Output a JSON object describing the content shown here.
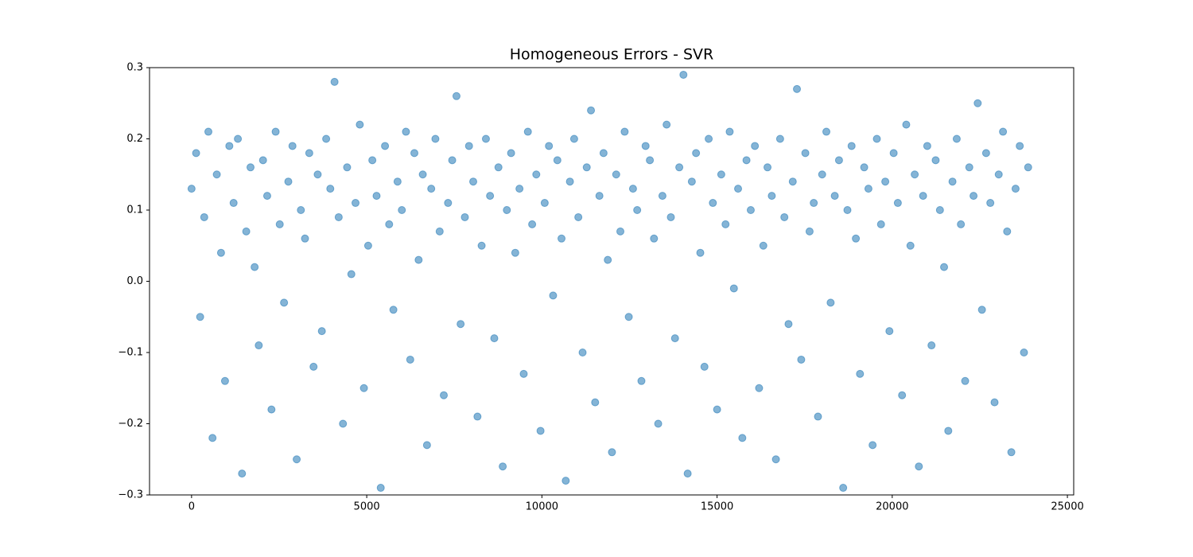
{
  "chart_data": {
    "type": "scatter",
    "title": "Homogeneous Errors - SVR",
    "color": "#1f77b4",
    "alpha": 0.55,
    "x": [
      0,
      130,
      245,
      362,
      480,
      598,
      720,
      841,
      955,
      1078,
      1200,
      1322,
      1440,
      1561,
      1683,
      1800,
      1918,
      2040,
      2159,
      2281,
      2400,
      2517,
      2640,
      2762,
      2880,
      3001,
      3120,
      3238,
      3360,
      3482,
      3600,
      3719,
      3842,
      3960,
      4081,
      4200,
      4322,
      4440,
      4561,
      4680,
      4802,
      4920,
      5041,
      5160,
      5281,
      5400,
      5522,
      5640,
      5761,
      5880,
      6002,
      6120,
      6242,
      6360,
      6481,
      6600,
      6720,
      6841,
      6960,
      7082,
      7200,
      7321,
      7440,
      7562,
      7680,
      7801,
      7920,
      8040,
      8161,
      8280,
      8402,
      8520,
      8641,
      8760,
      8882,
      9000,
      9121,
      9240,
      9360,
      9481,
      9600,
      9722,
      9840,
      9961,
      10080,
      10201,
      10320,
      10442,
      10560,
      10681,
      10800,
      10921,
      11040,
      11162,
      11280,
      11401,
      11520,
      11642,
      11760,
      11881,
      12000,
      12121,
      12240,
      12362,
      12480,
      12601,
      12720,
      12841,
      12960,
      13082,
      13200,
      13320,
      13441,
      13560,
      13681,
      13800,
      13922,
      14040,
      14161,
      14280,
      14400,
      14522,
      14640,
      14761,
      14880,
      15001,
      15120,
      15242,
      15360,
      15481,
      15600,
      15721,
      15840,
      15962,
      16080,
      16200,
      16321,
      16440,
      16562,
      16680,
      16800,
      16921,
      17040,
      17161,
      17280,
      17402,
      17520,
      17641,
      17760,
      17881,
      18000,
      18120,
      18242,
      18360,
      18481,
      18600,
      18721,
      18840,
      18962,
      19080,
      19200,
      19321,
      19440,
      19561,
      19680,
      19802,
      19920,
      20041,
      20160,
      20281,
      20400,
      20520,
      20642,
      20760,
      20881,
      21000,
      21121,
      21240,
      21362,
      21480,
      21600,
      21720,
      21841,
      21960,
      22082,
      22200,
      22321,
      22440,
      22561,
      22680,
      22800,
      22921,
      23040,
      23162,
      23280,
      23400,
      23521,
      23640,
      23761,
      23880
    ],
    "values": [
      0.13,
      0.18,
      -0.05,
      0.09,
      0.21,
      -0.22,
      0.15,
      0.04,
      -0.14,
      0.19,
      0.11,
      0.2,
      -0.27,
      0.07,
      0.16,
      0.02,
      -0.09,
      0.17,
      0.12,
      -0.18,
      0.21,
      0.08,
      -0.03,
      0.14,
      0.19,
      -0.25,
      0.1,
      0.06,
      0.18,
      -0.12,
      0.15,
      -0.07,
      0.2,
      0.13,
      0.28,
      0.09,
      -0.2,
      0.16,
      0.01,
      0.11,
      0.22,
      -0.15,
      0.05,
      0.17,
      0.12,
      -0.29,
      0.19,
      0.08,
      -0.04,
      0.14,
      0.1,
      0.21,
      -0.11,
      0.18,
      0.03,
      0.15,
      -0.23,
      0.13,
      0.2,
      0.07,
      -0.16,
      0.11,
      0.17,
      0.26,
      -0.06,
      0.09,
      0.19,
      0.14,
      -0.19,
      0.05,
      0.2,
      0.12,
      -0.08,
      0.16,
      -0.26,
      0.1,
      0.18,
      0.04,
      0.13,
      -0.13,
      0.21,
      0.08,
      0.15,
      -0.21,
      0.11,
      0.19,
      -0.02,
      0.17,
      0.06,
      -0.28,
      0.14,
      0.2,
      0.09,
      -0.1,
      0.16,
      0.24,
      -0.17,
      0.12,
      0.18,
      0.03,
      -0.24,
      0.15,
      0.07,
      0.21,
      -0.05,
      0.13,
      0.1,
      -0.14,
      0.19,
      0.17,
      0.06,
      -0.2,
      0.12,
      0.22,
      0.09,
      -0.08,
      0.16,
      0.29,
      -0.27,
      0.14,
      0.18,
      0.04,
      -0.12,
      0.2,
      0.11,
      -0.18,
      0.15,
      0.08,
      0.21,
      -0.01,
      0.13,
      -0.22,
      0.17,
      0.1,
      0.19,
      -0.15,
      0.05,
      0.16,
      0.12,
      -0.25,
      0.2,
      0.09,
      -0.06,
      0.14,
      0.27,
      -0.11,
      0.18,
      0.07,
      0.11,
      -0.19,
      0.15,
      0.21,
      -0.03,
      0.12,
      0.17,
      -0.29,
      0.1,
      0.19,
      0.06,
      -0.13,
      0.16,
      0.13,
      -0.23,
      0.2,
      0.08,
      0.14,
      -0.07,
      0.18,
      0.11,
      -0.16,
      0.22,
      0.05,
      0.15,
      -0.26,
      0.12,
      0.19,
      -0.09,
      0.17,
      0.1,
      0.02,
      -0.21,
      0.14,
      0.2,
      0.08,
      -0.14,
      0.16,
      0.12,
      0.25,
      -0.04,
      0.18,
      0.11,
      -0.17,
      0.15,
      0.21,
      0.07,
      -0.24,
      0.13,
      0.19,
      -0.1,
      0.16
    ],
    "xlim": [
      -1200,
      25180
    ],
    "ylim": [
      -0.3,
      0.3
    ],
    "xticks": [
      0,
      5000,
      10000,
      15000,
      20000,
      25000
    ],
    "yticks": [
      {
        "value": -0.3,
        "label": "−0.3"
      },
      {
        "value": -0.2,
        "label": "−0.2"
      },
      {
        "value": -0.1,
        "label": "−0.1"
      },
      {
        "value": 0,
        "label": "0.0"
      },
      0.1,
      0.2,
      0.3
    ],
    "grid": false
  }
}
